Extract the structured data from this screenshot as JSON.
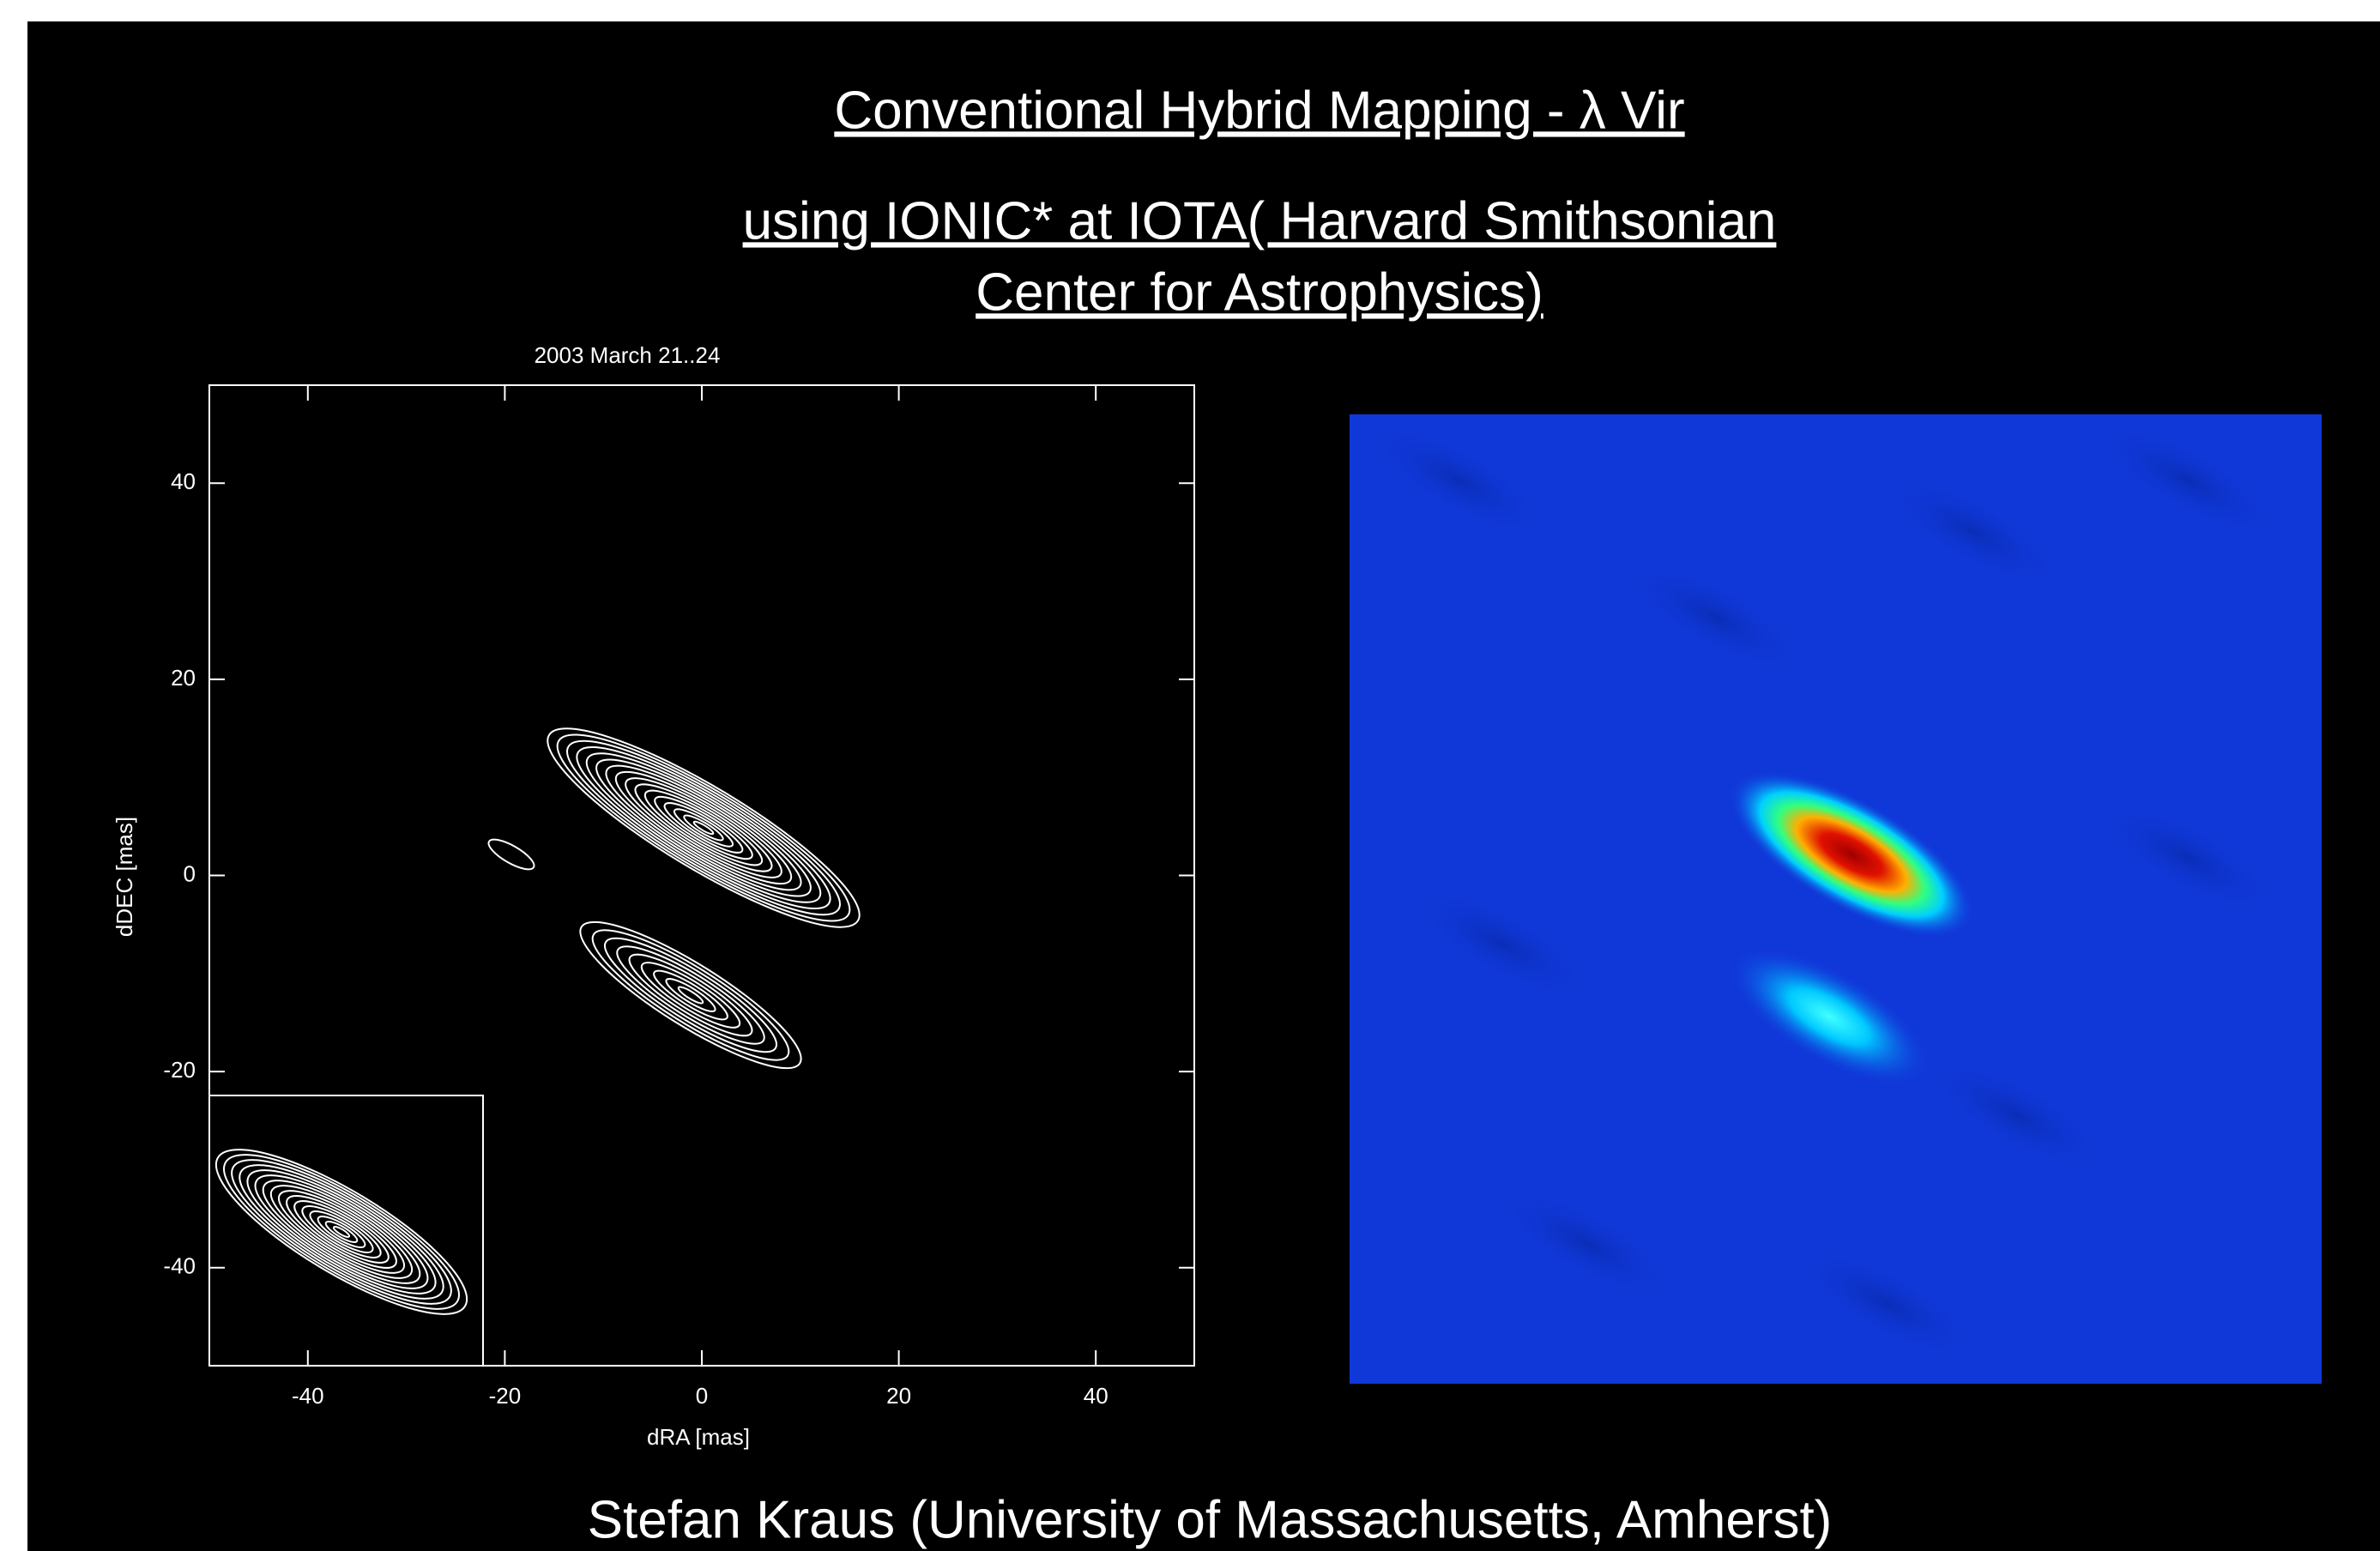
{
  "slide": {
    "title": "Conventional Hybrid Mapping - λ Vir",
    "subtitle": [
      "using IONIC* at IOTA( Harvard Smithsonian",
      "Center for Astrophysics)"
    ],
    "footer": "Stefan Kraus (University of Massachusetts, Amherst)"
  },
  "chart_data": {
    "type": "contour",
    "title": "2003 March 21..24",
    "x_label": "dRA [mas]",
    "y_label": "dDEC [mas]",
    "xlim": [
      -50,
      50
    ],
    "ylim": [
      -50,
      50
    ],
    "xticks": [
      -40,
      -20,
      0,
      20,
      40
    ],
    "yticks": [
      -40,
      -20,
      0,
      20,
      40
    ]
  }
}
